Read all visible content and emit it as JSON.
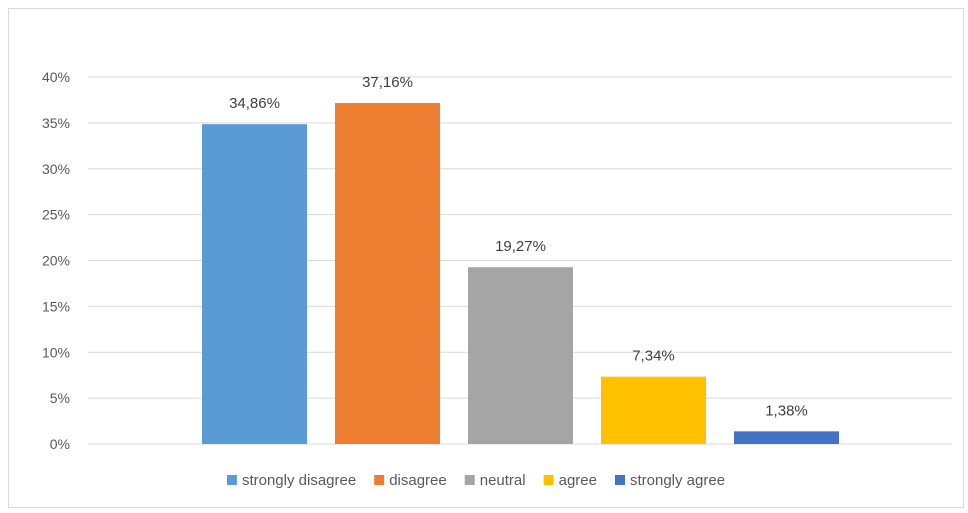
{
  "chart_data": {
    "type": "bar",
    "categories": [
      "strongly disagree",
      "disagree",
      "neutral",
      "agree",
      "strongly agree"
    ],
    "values": [
      34.86,
      37.16,
      19.27,
      7.34,
      1.38
    ],
    "data_labels": [
      "34,86%",
      "37,16%",
      "19,27%",
      "7,34%",
      "1,38%"
    ],
    "colors": [
      "#5b9bd5",
      "#ed7d31",
      "#a5a5a5",
      "#ffc000",
      "#4472c4"
    ],
    "y_ticks": [
      {
        "value": 0,
        "label": "0%"
      },
      {
        "value": 5,
        "label": "5%"
      },
      {
        "value": 10,
        "label": "10%"
      },
      {
        "value": 15,
        "label": "15%"
      },
      {
        "value": 20,
        "label": "20%"
      },
      {
        "value": 25,
        "label": "25%"
      },
      {
        "value": 30,
        "label": "30%"
      },
      {
        "value": 35,
        "label": "35%"
      },
      {
        "value": 40,
        "label": "40%"
      }
    ],
    "ylim": [
      0,
      40
    ],
    "grid": true,
    "legend_position": "bottom",
    "title": "",
    "xlabel": "",
    "ylabel": ""
  }
}
